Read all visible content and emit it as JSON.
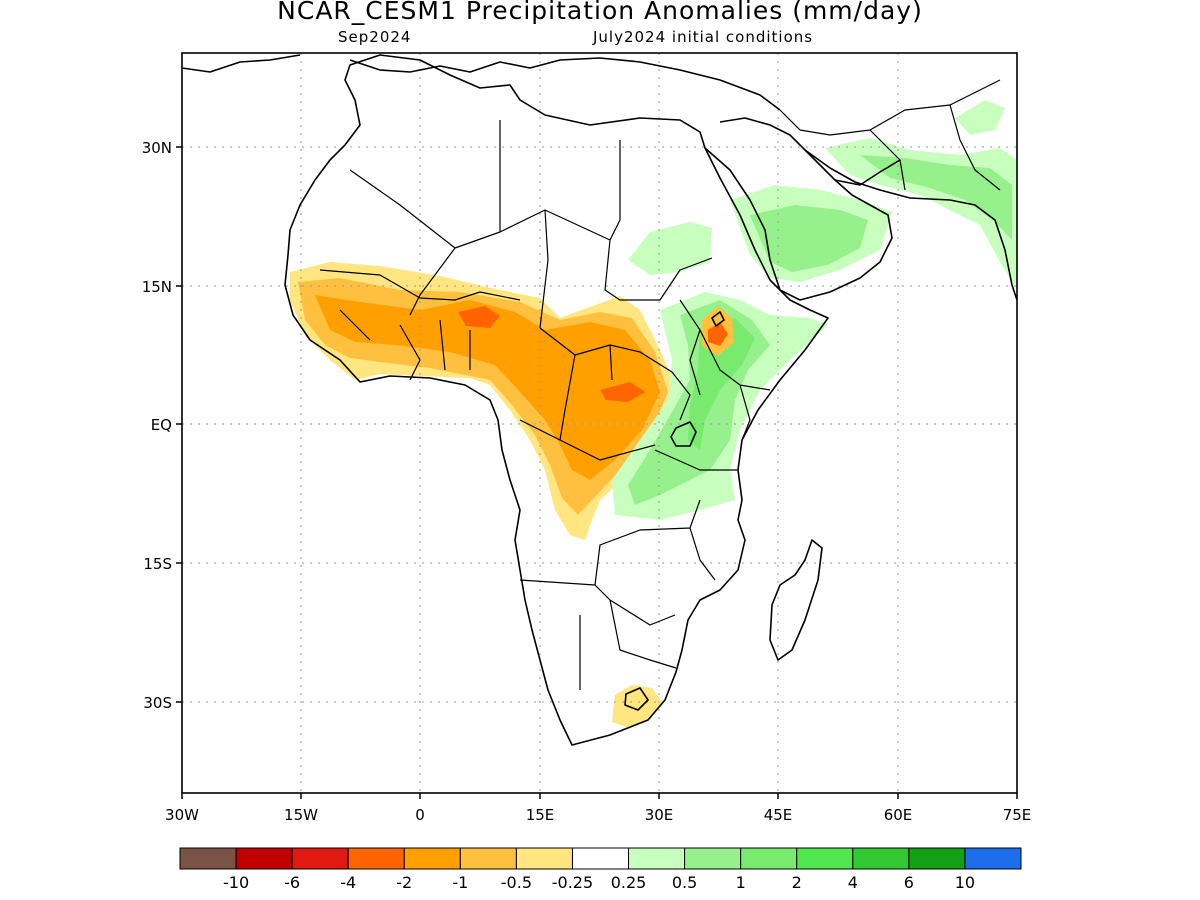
{
  "title": "NCAR_CESM1 Precipitation Anomalies (mm/day)",
  "valid_month": "Sep2024",
  "initial_conditions": "July2024 initial conditions",
  "axes": {
    "lat_labels": [
      "30N",
      "15N",
      "EQ",
      "15S",
      "30S"
    ],
    "lon_labels": [
      "30W",
      "15W",
      "0",
      "15E",
      "30E",
      "45E",
      "60E",
      "75E"
    ]
  },
  "colorbar": {
    "colors": [
      "#7a5246",
      "#c00000",
      "#e01a10",
      "#ff6400",
      "#ffa000",
      "#ffc040",
      "#ffe680",
      "#ffffff",
      "#c8ffbe",
      "#96f08c",
      "#78eb6e",
      "#50e650",
      "#32c832",
      "#14a014",
      "#1e6eeb"
    ],
    "labels": [
      "-10",
      "-6",
      "-4",
      "-2",
      "-1",
      "-0.5",
      "-0.25",
      "0.25",
      "0.5",
      "1",
      "2",
      "4",
      "6",
      "10"
    ]
  },
  "palette": {
    "dry_light": "#ffe680",
    "dry_mid": "#ffc040",
    "dry_strong": "#ffa000",
    "dry_max": "#ff6400",
    "wet_light": "#c8ffbe",
    "wet_mid": "#96f08c",
    "wet_strong": "#78eb6e",
    "wet_max": "#50e650"
  }
}
